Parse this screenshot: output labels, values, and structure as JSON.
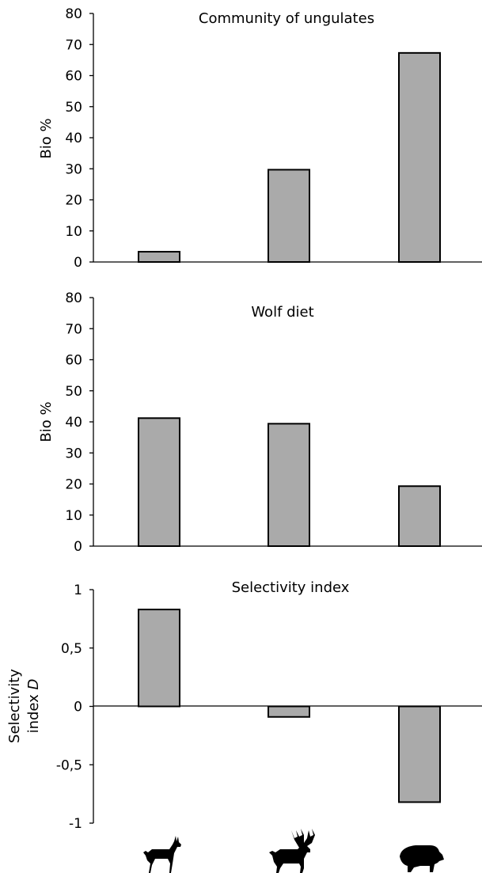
{
  "chart_data": [
    {
      "type": "bar",
      "title": "Community of ungulates",
      "ylabel": "Bio %",
      "ylim": [
        0,
        80
      ],
      "yticks": [
        "0",
        "10",
        "20",
        "30",
        "40",
        "50",
        "60",
        "70",
        "80"
      ],
      "categories": [
        "roe-deer",
        "red-deer",
        "wild-boar"
      ],
      "values": [
        3.3,
        29.7,
        67.3
      ],
      "grid": false,
      "legend": "none"
    },
    {
      "type": "bar",
      "title": "Wolf diet",
      "ylabel": "Bio %",
      "ylim": [
        0,
        80
      ],
      "yticks": [
        "0",
        "10",
        "20",
        "30",
        "40",
        "50",
        "60",
        "70",
        "80"
      ],
      "categories": [
        "roe-deer",
        "red-deer",
        "wild-boar"
      ],
      "values": [
        41.2,
        39.4,
        19.3
      ],
      "grid": false,
      "legend": "none"
    },
    {
      "type": "bar",
      "title": "Selectivity index",
      "ylabel_line1": "Selectivity",
      "ylabel_line2": "index ",
      "ylabel_italic": "D",
      "ylim": [
        -1,
        1
      ],
      "yticks": [
        "-1",
        "-0,5",
        "0",
        "0,5",
        "1"
      ],
      "categories": [
        "roe-deer",
        "red-deer",
        "wild-boar"
      ],
      "values": [
        0.83,
        -0.09,
        -0.82
      ],
      "grid": false,
      "legend": "none"
    }
  ],
  "x_icons": [
    "roe-deer-icon",
    "red-deer-icon",
    "wild-boar-icon"
  ],
  "colors": {
    "bar_fill": "#aaaaaa",
    "bar_stroke": "#000000",
    "axis": "#000000"
  }
}
